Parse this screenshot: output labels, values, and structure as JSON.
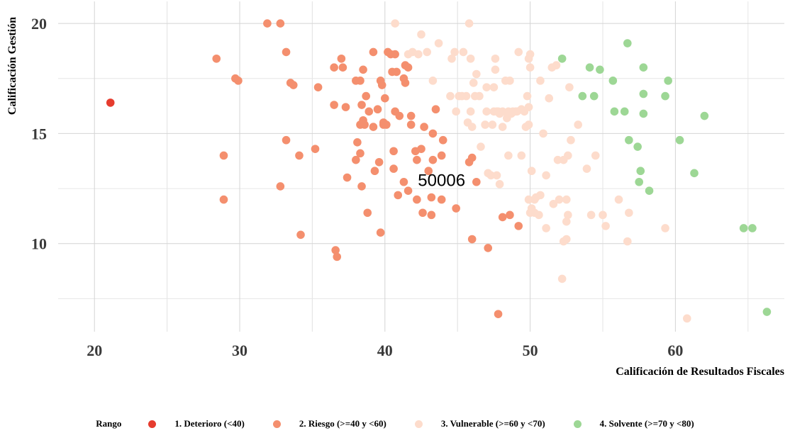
{
  "chart_data": {
    "type": "scatter",
    "xlabel": "Calificación de Resultados Fiscales",
    "ylabel": "Calificación Gestión",
    "xlim": [
      17.5,
      67.5
    ],
    "ylim": [
      6.0,
      21.0
    ],
    "xticks": [
      "20",
      "30",
      "40",
      "50",
      "60"
    ],
    "yticks": [
      "10",
      "15",
      "20"
    ],
    "grid": true,
    "legend_position": "bottom",
    "legend_title": "Rango",
    "annotations": [
      {
        "text": "50006",
        "x": 43.9,
        "y": 12.9
      }
    ],
    "series": [
      {
        "name": "1. Deterioro (<40)",
        "color": "#e63c2e",
        "points": [
          [
            21.1,
            16.4
          ]
        ]
      },
      {
        "name": "2. Riesgo (>=40 y <60)",
        "color": "#f48f6e",
        "points": [
          [
            28.4,
            18.4
          ],
          [
            28.9,
            14.0
          ],
          [
            28.9,
            12.0
          ],
          [
            29.7,
            17.5
          ],
          [
            29.9,
            17.4
          ],
          [
            31.9,
            20.0
          ],
          [
            32.8,
            20.0
          ],
          [
            32.8,
            12.6
          ],
          [
            33.2,
            18.7
          ],
          [
            33.2,
            14.7
          ],
          [
            33.5,
            17.3
          ],
          [
            33.7,
            17.2
          ],
          [
            34.1,
            14.0
          ],
          [
            34.2,
            10.4
          ],
          [
            35.2,
            14.3
          ],
          [
            35.4,
            17.1
          ],
          [
            36.5,
            18.0
          ],
          [
            36.5,
            16.3
          ],
          [
            36.6,
            9.7
          ],
          [
            36.7,
            9.4
          ],
          [
            37.0,
            18.4
          ],
          [
            37.1,
            18.0
          ],
          [
            37.3,
            16.2
          ],
          [
            37.4,
            13.0
          ],
          [
            38.0,
            17.4
          ],
          [
            38.0,
            13.8
          ],
          [
            38.1,
            14.6
          ],
          [
            38.3,
            17.4
          ],
          [
            38.3,
            15.4
          ],
          [
            38.3,
            14.1
          ],
          [
            38.4,
            16.3
          ],
          [
            38.4,
            12.6
          ],
          [
            38.5,
            17.9
          ],
          [
            38.5,
            15.6
          ],
          [
            38.6,
            15.4
          ],
          [
            38.7,
            16.7
          ],
          [
            38.8,
            11.4
          ],
          [
            38.9,
            16.0
          ],
          [
            39.2,
            18.7
          ],
          [
            39.2,
            15.3
          ],
          [
            39.3,
            13.3
          ],
          [
            39.5,
            16.1
          ],
          [
            39.6,
            13.7
          ],
          [
            39.7,
            17.4
          ],
          [
            39.7,
            10.5
          ],
          [
            39.8,
            17.2
          ],
          [
            39.9,
            15.4
          ],
          [
            39.9,
            15.5
          ],
          [
            40.0,
            16.6
          ],
          [
            40.1,
            15.4
          ],
          [
            40.2,
            18.7
          ],
          [
            40.4,
            18.6
          ],
          [
            40.5,
            17.8
          ],
          [
            40.6,
            14.2
          ],
          [
            40.6,
            13.4
          ],
          [
            40.7,
            18.6
          ],
          [
            40.7,
            16.0
          ],
          [
            40.8,
            17.8
          ],
          [
            40.9,
            12.2
          ],
          [
            41.0,
            15.8
          ],
          [
            41.3,
            17.5
          ],
          [
            41.3,
            12.8
          ],
          [
            41.4,
            17.3
          ],
          [
            41.4,
            18.1
          ],
          [
            41.6,
            18.0
          ],
          [
            41.6,
            12.4
          ],
          [
            41.8,
            15.8
          ],
          [
            41.8,
            15.4
          ],
          [
            42.1,
            14.2
          ],
          [
            42.2,
            13.8
          ],
          [
            42.2,
            12.0
          ],
          [
            42.5,
            14.3
          ],
          [
            42.6,
            11.4
          ],
          [
            42.7,
            15.3
          ],
          [
            43.0,
            13.3
          ],
          [
            43.2,
            12.1
          ],
          [
            43.2,
            11.3
          ],
          [
            43.3,
            15.0
          ],
          [
            43.3,
            13.8
          ],
          [
            43.5,
            16.1
          ],
          [
            43.9,
            12.0
          ],
          [
            43.9,
            14.0
          ],
          [
            44.0,
            14.7
          ],
          [
            44.9,
            11.6
          ],
          [
            45.8,
            13.7
          ],
          [
            46.0,
            13.9
          ],
          [
            46.0,
            10.2
          ],
          [
            46.3,
            12.8
          ],
          [
            47.1,
            9.8
          ],
          [
            47.8,
            6.8
          ],
          [
            48.1,
            11.2
          ],
          [
            48.6,
            11.3
          ],
          [
            49.2,
            10.8
          ]
        ]
      },
      {
        "name": "3. Vulnerable (>=60 y <70)",
        "color": "#fddccc",
        "points": [
          [
            40.7,
            20.0
          ],
          [
            41.6,
            18.6
          ],
          [
            41.9,
            18.7
          ],
          [
            42.3,
            18.6
          ],
          [
            42.5,
            19.5
          ],
          [
            42.9,
            18.7
          ],
          [
            43.3,
            17.4
          ],
          [
            43.7,
            19.1
          ],
          [
            44.5,
            16.7
          ],
          [
            44.6,
            18.4
          ],
          [
            44.8,
            18.7
          ],
          [
            44.9,
            16.0
          ],
          [
            45.1,
            16.7
          ],
          [
            45.3,
            16.7
          ],
          [
            45.4,
            18.7
          ],
          [
            45.6,
            16.7
          ],
          [
            45.7,
            15.5
          ],
          [
            45.8,
            20.0
          ],
          [
            45.9,
            18.4
          ],
          [
            45.9,
            16.0
          ],
          [
            46.0,
            15.3
          ],
          [
            46.1,
            17.3
          ],
          [
            46.2,
            16.7
          ],
          [
            46.3,
            17.7
          ],
          [
            46.5,
            16.7
          ],
          [
            46.6,
            14.4
          ],
          [
            46.9,
            15.4
          ],
          [
            47.0,
            17.1
          ],
          [
            47.0,
            16.0
          ],
          [
            47.1,
            13.2
          ],
          [
            47.3,
            13.1
          ],
          [
            47.4,
            15.4
          ],
          [
            47.5,
            16.0
          ],
          [
            47.5,
            17.1
          ],
          [
            47.6,
            18.4
          ],
          [
            47.6,
            17.9
          ],
          [
            47.7,
            16.0
          ],
          [
            47.7,
            13.1
          ],
          [
            47.8,
            16.0
          ],
          [
            47.9,
            15.9
          ],
          [
            47.9,
            12.7
          ],
          [
            48.1,
            16.0
          ],
          [
            48.1,
            15.3
          ],
          [
            48.3,
            17.4
          ],
          [
            48.4,
            15.7
          ],
          [
            48.5,
            14.0
          ],
          [
            48.5,
            16.0
          ],
          [
            48.6,
            17.4
          ],
          [
            48.7,
            15.9
          ],
          [
            48.8,
            16.0
          ],
          [
            49.0,
            16.0
          ],
          [
            49.1,
            16.0
          ],
          [
            49.2,
            18.7
          ],
          [
            49.4,
            14.0
          ],
          [
            49.4,
            16.1
          ],
          [
            49.6,
            16.0
          ],
          [
            49.7,
            15.3
          ],
          [
            49.8,
            16.7
          ],
          [
            49.9,
            18.4
          ],
          [
            49.9,
            16.2
          ],
          [
            49.9,
            15.4
          ],
          [
            49.9,
            12.0
          ],
          [
            50.0,
            18.6
          ],
          [
            50.0,
            18.0
          ],
          [
            50.0,
            11.4
          ],
          [
            50.1,
            13.3
          ],
          [
            50.1,
            11.6
          ],
          [
            50.3,
            12.0
          ],
          [
            50.3,
            11.4
          ],
          [
            50.4,
            12.1
          ],
          [
            50.6,
            11.3
          ],
          [
            50.7,
            17.4
          ],
          [
            50.7,
            12.2
          ],
          [
            50.9,
            15.0
          ],
          [
            51.1,
            13.1
          ],
          [
            51.1,
            10.7
          ],
          [
            51.3,
            16.6
          ],
          [
            51.5,
            18.0
          ],
          [
            51.6,
            11.8
          ],
          [
            51.8,
            18.1
          ],
          [
            51.9,
            13.8
          ],
          [
            52.0,
            12.0
          ],
          [
            52.2,
            8.4
          ],
          [
            52.3,
            10.1
          ],
          [
            52.3,
            13.8
          ],
          [
            52.5,
            12.0
          ],
          [
            52.5,
            11.0
          ],
          [
            52.5,
            10.2
          ],
          [
            52.6,
            14.0
          ],
          [
            52.6,
            11.3
          ],
          [
            52.7,
            17.1
          ],
          [
            52.8,
            14.7
          ],
          [
            53.3,
            15.4
          ],
          [
            53.9,
            13.4
          ],
          [
            54.2,
            11.3
          ],
          [
            54.5,
            14.0
          ],
          [
            55.0,
            11.3
          ],
          [
            55.2,
            10.8
          ],
          [
            56.1,
            12.0
          ],
          [
            56.7,
            10.1
          ],
          [
            56.8,
            11.4
          ],
          [
            59.3,
            10.7
          ],
          [
            60.8,
            6.6
          ]
        ]
      },
      {
        "name": "4. Solvente (>=70 y <80)",
        "color": "#9dd795",
        "points": [
          [
            52.2,
            18.4
          ],
          [
            53.6,
            16.7
          ],
          [
            54.1,
            18.0
          ],
          [
            54.4,
            16.7
          ],
          [
            54.8,
            17.9
          ],
          [
            55.7,
            17.4
          ],
          [
            55.8,
            16.0
          ],
          [
            56.5,
            16.0
          ],
          [
            56.7,
            19.1
          ],
          [
            56.8,
            14.7
          ],
          [
            57.4,
            14.4
          ],
          [
            57.5,
            12.8
          ],
          [
            57.6,
            13.3
          ],
          [
            57.8,
            18.0
          ],
          [
            57.8,
            16.8
          ],
          [
            57.8,
            15.9
          ],
          [
            58.2,
            12.4
          ],
          [
            59.3,
            16.7
          ],
          [
            59.5,
            17.4
          ],
          [
            60.3,
            14.7
          ],
          [
            61.3,
            13.2
          ],
          [
            62.0,
            15.8
          ],
          [
            64.7,
            10.7
          ],
          [
            65.3,
            10.7
          ],
          [
            66.3,
            6.9
          ]
        ]
      }
    ]
  }
}
